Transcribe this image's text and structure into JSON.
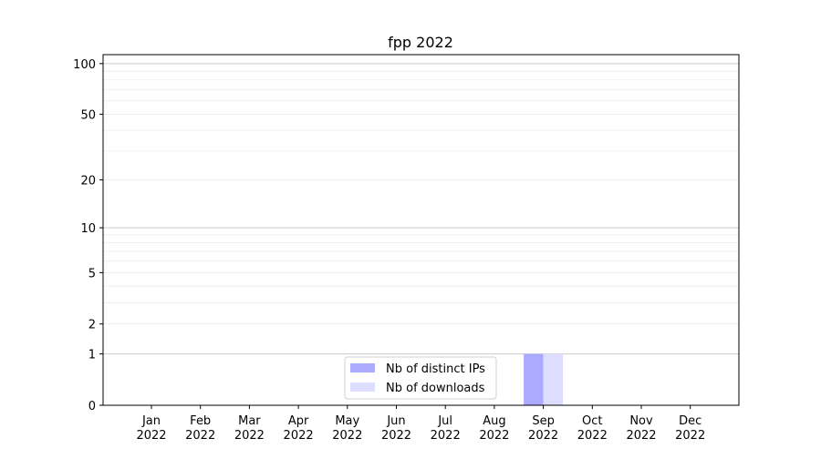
{
  "chart_data": {
    "type": "bar",
    "title": "fpp 2022",
    "xlabel": "",
    "ylabel": "",
    "categories": [
      "Jan\n2022",
      "Feb\n2022",
      "Mar\n2022",
      "Apr\n2022",
      "May\n2022",
      "Jun\n2022",
      "Jul\n2022",
      "Aug\n2022",
      "Sep\n2022",
      "Oct\n2022",
      "Nov\n2022",
      "Dec\n2022"
    ],
    "series": [
      {
        "name": "Nb of distinct IPs",
        "color": "#aaaaff",
        "values": [
          0,
          0,
          0,
          0,
          0,
          0,
          0,
          0,
          1,
          0,
          0,
          0
        ]
      },
      {
        "name": "Nb of downloads",
        "color": "#ddddff",
        "values": [
          0,
          0,
          0,
          0,
          0,
          0,
          0,
          0,
          1,
          0,
          0,
          0
        ]
      }
    ],
    "y_scale": "log10(y+1)",
    "ylim": [
      0,
      113
    ],
    "yticks": [
      0,
      1,
      2,
      5,
      10,
      20,
      50,
      100
    ],
    "grid": true,
    "legend_position": "lower center"
  }
}
